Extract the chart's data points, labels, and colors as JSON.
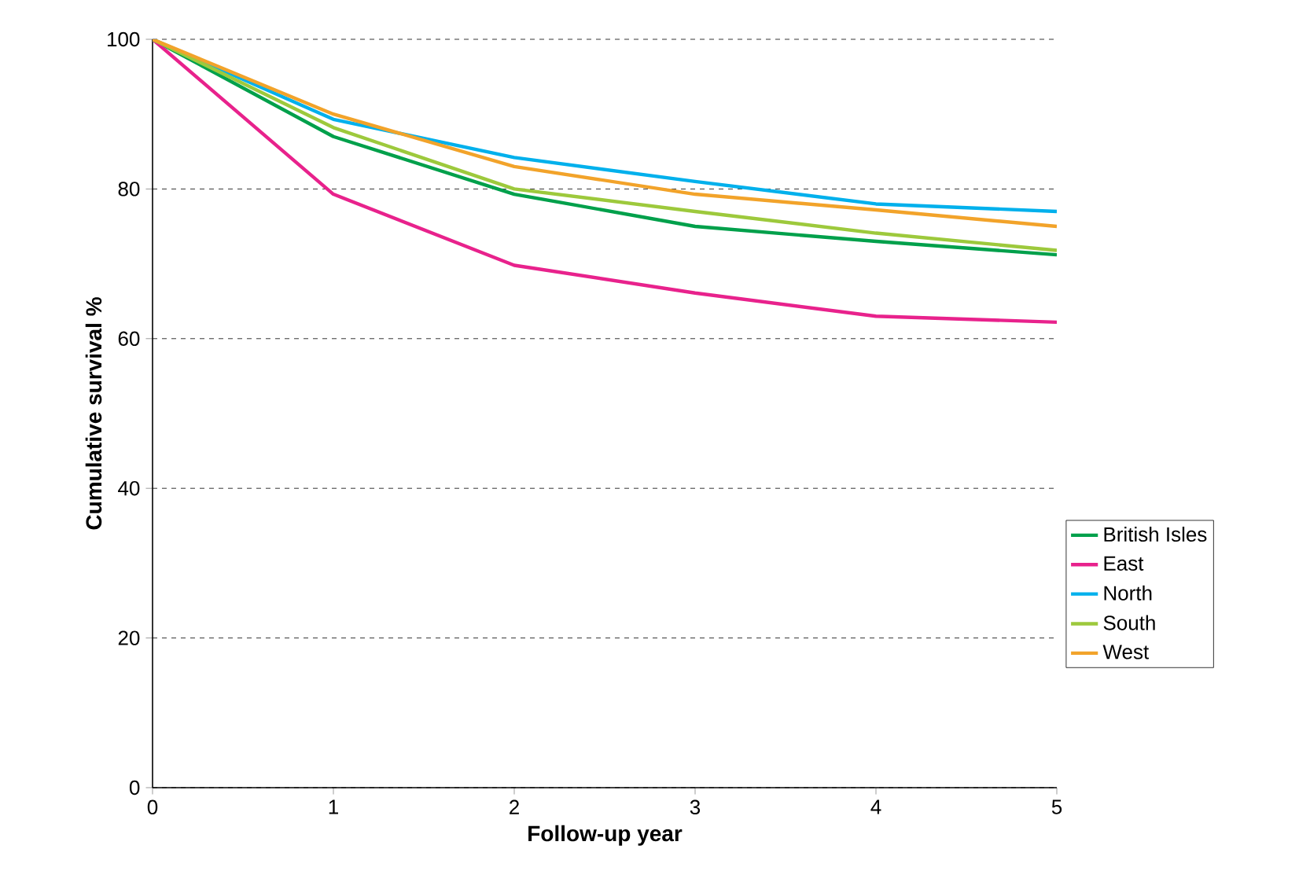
{
  "chart_data": {
    "type": "line",
    "xlabel": "Follow-up year",
    "ylabel": "Cumulative survival %",
    "x": [
      0,
      1,
      2,
      3,
      4,
      5
    ],
    "xlim": [
      0,
      5
    ],
    "xticks": [
      0,
      1,
      2,
      3,
      4,
      5
    ],
    "ylim": [
      0,
      100
    ],
    "yticks": [
      0,
      20,
      40,
      60,
      80,
      100
    ],
    "grid": "y",
    "legend": "right",
    "marker": "none",
    "line_style": "solid",
    "series": [
      {
        "name": "British Isles",
        "color": "#00a04b",
        "values": [
          100,
          87,
          79.3,
          75,
          73,
          71.2
        ]
      },
      {
        "name": "East",
        "color": "#e8228c",
        "values": [
          100,
          79.3,
          69.8,
          66.1,
          63,
          62.2
        ]
      },
      {
        "name": "North",
        "color": "#00b0ec",
        "values": [
          100,
          89.3,
          84.2,
          81,
          78,
          77
        ]
      },
      {
        "name": "South",
        "color": "#9dc93c",
        "values": [
          100,
          88.2,
          80,
          77,
          74.1,
          71.8
        ]
      },
      {
        "name": "West",
        "color": "#f2a32a",
        "values": [
          100,
          90,
          83,
          79.3,
          77.2,
          75
        ]
      }
    ]
  }
}
